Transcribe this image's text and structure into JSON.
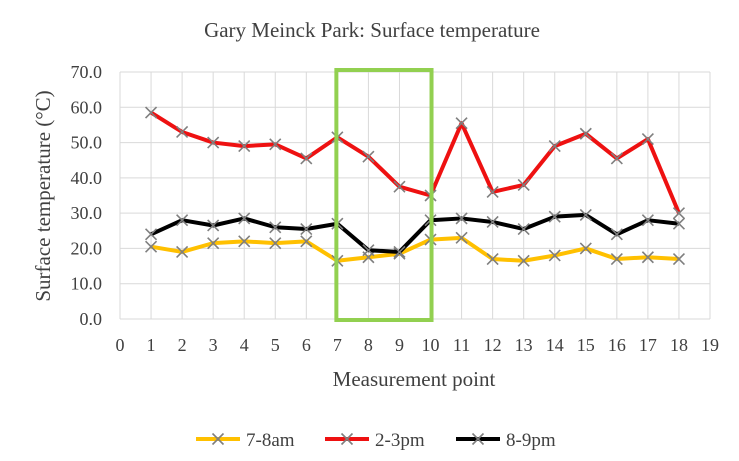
{
  "chart_data": {
    "type": "line",
    "title": "Gary Meinck Park: Surface temperature",
    "xlabel": "Measurement point",
    "ylabel": "Surface temperature (°C)",
    "xlim": [
      0,
      19
    ],
    "ylim": [
      0,
      70
    ],
    "x_ticks": [
      0,
      1,
      2,
      3,
      4,
      5,
      6,
      7,
      8,
      9,
      10,
      11,
      12,
      13,
      14,
      15,
      16,
      17,
      18,
      19
    ],
    "y_ticks": [
      "0.0",
      "10.0",
      "20.0",
      "30.0",
      "40.0",
      "50.0",
      "60.0",
      "70.0"
    ],
    "grid": true,
    "legend_position": "bottom",
    "x": [
      1,
      2,
      3,
      4,
      5,
      6,
      7,
      8,
      9,
      10,
      11,
      12,
      13,
      14,
      15,
      16,
      17,
      18
    ],
    "series": [
      {
        "name": "7-8am",
        "color": "#FFC000",
        "values": [
          20.5,
          19.0,
          21.5,
          22.0,
          21.5,
          22.0,
          16.5,
          17.5,
          18.5,
          22.5,
          23.0,
          17.0,
          16.5,
          18.0,
          20.0,
          17.0,
          17.5,
          17.0
        ]
      },
      {
        "name": "2-3pm",
        "color": "#EE1111",
        "values": [
          58.5,
          53.0,
          50.0,
          49.0,
          49.5,
          45.5,
          51.5,
          46.0,
          37.5,
          35.0,
          55.5,
          36.0,
          38.0,
          49.0,
          52.5,
          45.5,
          51.0,
          30.0
        ]
      },
      {
        "name": "8-9pm",
        "color": "#000000",
        "values": [
          24.0,
          28.0,
          26.5,
          28.5,
          26.0,
          25.5,
          27.0,
          19.5,
          19.0,
          28.0,
          28.5,
          27.5,
          25.5,
          29.0,
          29.5,
          24.0,
          28.0,
          27.0
        ]
      }
    ],
    "highlight": {
      "x_from": 7,
      "x_to": 10,
      "color": "#92D050"
    }
  }
}
